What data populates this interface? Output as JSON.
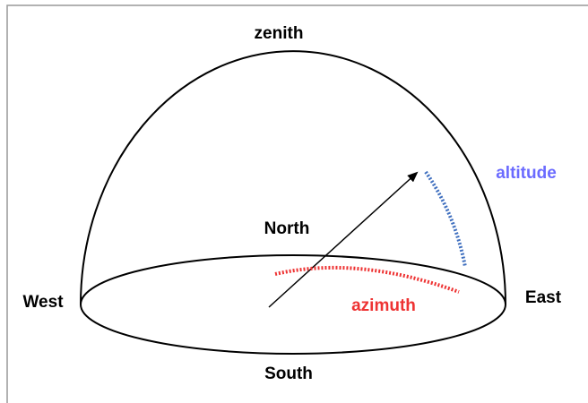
{
  "labels": {
    "zenith": "zenith",
    "north": "North",
    "west": "West",
    "east": "East",
    "south": "South",
    "altitude": "altitude",
    "azimuth": "azimuth"
  }
}
